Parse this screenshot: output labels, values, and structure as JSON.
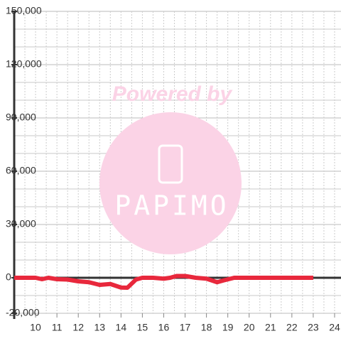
{
  "chart_data": {
    "type": "line",
    "watermark": {
      "top": "Powered by",
      "brand": "PAPIMO"
    },
    "x": [
      9,
      9.5,
      10,
      10.3,
      10.6,
      11,
      11.5,
      12,
      12.5,
      13,
      13.5,
      14,
      14.3,
      14.7,
      15,
      15.5,
      16,
      16.3,
      16.6,
      17,
      17.5,
      18,
      18.5,
      18.8,
      19.3,
      20,
      21,
      22,
      23
    ],
    "series": [
      {
        "color": "#e8283c",
        "values": [
          0,
          0,
          0,
          -800,
          0,
          -800,
          -1000,
          -2000,
          -2500,
          -4000,
          -3500,
          -5500,
          -5600,
          -1000,
          0,
          0,
          -500,
          0,
          1000,
          1000,
          0,
          -500,
          -2500,
          -1500,
          0,
          0,
          0,
          0,
          0
        ]
      }
    ],
    "xlim": [
      9,
      24.3
    ],
    "xticks": [
      10,
      11,
      12,
      13,
      14,
      15,
      16,
      17,
      18,
      19,
      20,
      21,
      22,
      23,
      24
    ],
    "xminorticks": [
      9.5,
      10.5,
      11.5,
      12.5,
      13.5,
      14.5,
      15.5,
      16.5,
      17.5,
      18.5,
      19.5,
      20.5,
      21.5,
      22.5,
      23.5
    ],
    "ylim": [
      -20000,
      150000
    ],
    "yticks": [
      {
        "value": -20000,
        "label": "-20,000"
      },
      0,
      {
        "value": 30000,
        "label": "30,000"
      },
      {
        "value": 60000,
        "label": "60,000"
      },
      {
        "value": 90000,
        "label": "90,000"
      },
      {
        "value": 120000,
        "label": "120,000"
      },
      {
        "value": 150000,
        "label": "150,000"
      }
    ],
    "yminorticks": [
      -10000,
      10000,
      20000,
      40000,
      50000,
      70000,
      80000,
      100000,
      110000,
      130000,
      140000
    ],
    "grid": true
  }
}
